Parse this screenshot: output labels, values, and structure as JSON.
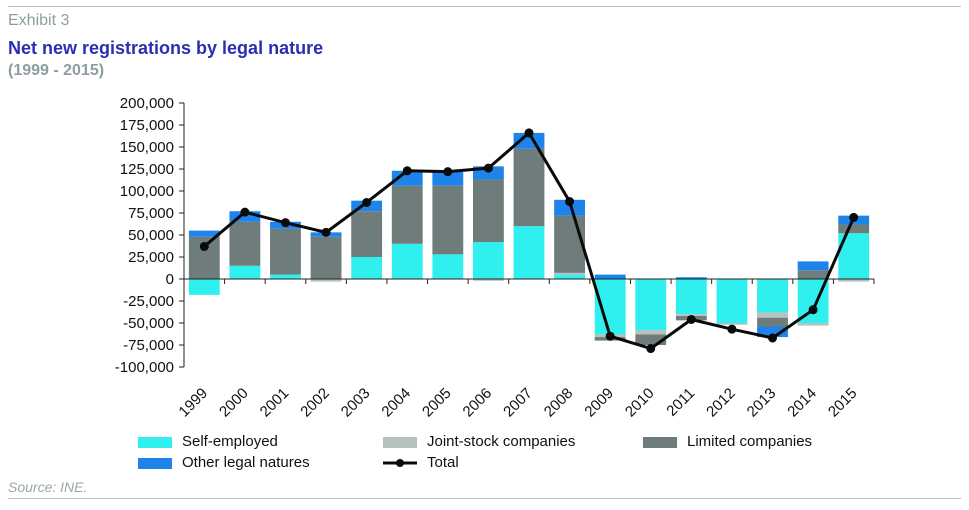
{
  "header": {
    "exhibit": "Exhibit 3",
    "title": "Net new registrations by legal nature",
    "subtitle": "(1999 - 2015)"
  },
  "footer": {
    "source": "Source: INE."
  },
  "colors": {
    "self_employed": "#2ff0ee",
    "joint_stock": "#b7c1bf",
    "limited": "#6f7c7c",
    "other": "#1e84ea",
    "total": "#0a0a0a"
  },
  "chart_data": {
    "type": "bar",
    "stacked": true,
    "categories": [
      "1999",
      "2000",
      "2001",
      "2002",
      "2003",
      "2004",
      "2005",
      "2006",
      "2007",
      "2008",
      "2009",
      "2010",
      "2011",
      "2012",
      "2013",
      "2014",
      "2015"
    ],
    "series": [
      {
        "name": "Self-employed",
        "key": "self_employed",
        "values": [
          -18000,
          15000,
          5000,
          0,
          25000,
          40000,
          28000,
          42000,
          60000,
          5000,
          -63000,
          -58000,
          -40000,
          -50000,
          -38000,
          -50000,
          52000
        ]
      },
      {
        "name": "Joint-stock companies",
        "key": "joint_stock",
        "values": [
          0,
          0,
          0,
          -3000,
          0,
          0,
          0,
          -2000,
          0,
          2000,
          -3000,
          -5000,
          -2000,
          -2000,
          -6000,
          -3000,
          -3000
        ]
      },
      {
        "name": "Limited companies",
        "key": "limited",
        "values": [
          48000,
          50000,
          52000,
          48000,
          52000,
          66000,
          78000,
          71000,
          88000,
          65000,
          -4000,
          -12000,
          -5000,
          0,
          -10000,
          10000,
          10000
        ]
      },
      {
        "name": "Other legal natures",
        "key": "other",
        "values": [
          7000,
          12000,
          8000,
          5000,
          12000,
          17000,
          16000,
          15000,
          18000,
          18000,
          5000,
          0,
          2000,
          0,
          -12000,
          10000,
          10000
        ]
      }
    ],
    "line": {
      "name": "Total",
      "key": "total",
      "values": [
        37000,
        76000,
        64000,
        53000,
        87000,
        123000,
        122000,
        126000,
        166000,
        88000,
        -65000,
        -79000,
        -46000,
        -57000,
        -67000,
        -35000,
        70000
      ]
    },
    "ylim": [
      -100000,
      200000
    ],
    "yticks": [
      200000,
      175000,
      150000,
      125000,
      100000,
      75000,
      50000,
      25000,
      0,
      -25000,
      -50000,
      -75000,
      -100000
    ],
    "ytick_labels": [
      "200,000",
      "175,000",
      "150,000",
      "125,000",
      "100,000",
      "75,000",
      "50,000",
      "25,000",
      "0",
      "-25,000",
      "-50,000",
      "-75,000",
      "-100,000"
    ],
    "xlabel": "",
    "ylabel": "",
    "grid": false,
    "legend_position": "bottom"
  },
  "legend": {
    "self_employed": "Self-employed",
    "joint_stock": "Joint-stock companies",
    "limited": "Limited companies",
    "other": "Other legal natures",
    "total": "Total"
  }
}
